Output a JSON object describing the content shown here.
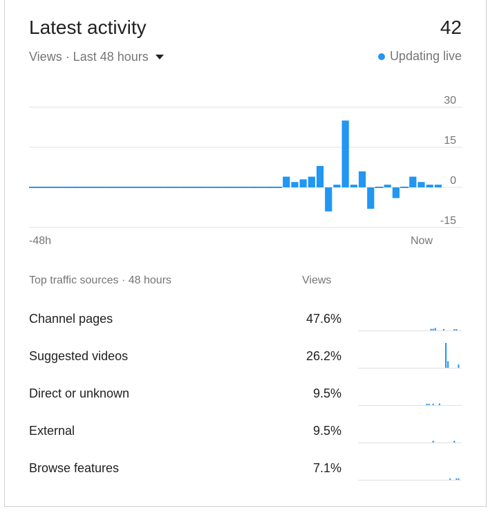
{
  "header": {
    "title": "Latest activity",
    "total": "42",
    "metric_label": "Views · Last 48 hours",
    "live_label": "Updating live"
  },
  "colors": {
    "bar": "#2196f3",
    "grid": "#e0e0e0",
    "text_secondary": "#757575"
  },
  "chart_data": {
    "type": "bar",
    "title": "",
    "xlabel": "",
    "ylabel": "",
    "ylim": [
      -15,
      30
    ],
    "yticks": [
      "30",
      "15",
      "0",
      "-15"
    ],
    "xtick_labels": [
      "-48h",
      "Now"
    ],
    "values": [
      0,
      0,
      0,
      0,
      0,
      0,
      0,
      0,
      0,
      0,
      0,
      0,
      0,
      0,
      0,
      0,
      0,
      0,
      0,
      0,
      0,
      0,
      0,
      0,
      0,
      0,
      0,
      0,
      0,
      0,
      4,
      2,
      3,
      4,
      8,
      -9,
      1,
      25,
      1,
      6,
      -8,
      0,
      1,
      -4,
      0,
      4,
      2,
      1,
      1
    ]
  },
  "traffic": {
    "header_label": "Top traffic sources · 48 hours",
    "views_label": "Views",
    "sources": [
      {
        "name": "Channel pages",
        "pct": "47.6%",
        "spark": [
          0,
          0,
          0,
          0,
          0,
          0,
          0,
          0,
          0,
          0,
          0,
          0,
          0,
          0,
          0,
          0,
          0,
          0,
          0,
          0,
          0,
          0,
          0,
          0,
          0,
          0,
          0,
          0,
          0,
          0,
          0,
          0,
          0,
          0,
          2,
          2,
          3,
          0,
          0,
          0,
          1,
          0,
          0,
          0,
          0,
          1,
          1,
          0,
          0
        ]
      },
      {
        "name": "Suggested videos",
        "pct": "26.2%",
        "spark": [
          0,
          0,
          0,
          0,
          0,
          0,
          0,
          0,
          0,
          0,
          0,
          0,
          0,
          0,
          0,
          0,
          0,
          0,
          0,
          0,
          0,
          0,
          0,
          0,
          0,
          0,
          0,
          0,
          0,
          0,
          0,
          0,
          0,
          0,
          0,
          0,
          0,
          0,
          0,
          0,
          0,
          30,
          8,
          0,
          0,
          0,
          0,
          4,
          0
        ]
      },
      {
        "name": "Direct or unknown",
        "pct": "9.5%",
        "spark": [
          0,
          0,
          0,
          0,
          0,
          0,
          0,
          0,
          0,
          0,
          0,
          0,
          0,
          0,
          0,
          0,
          0,
          0,
          0,
          0,
          0,
          0,
          0,
          0,
          0,
          0,
          0,
          0,
          0,
          0,
          0,
          0,
          1,
          1,
          0,
          1,
          0,
          0,
          2,
          0,
          0,
          0,
          0,
          0,
          0,
          0,
          0,
          0,
          0
        ]
      },
      {
        "name": "External",
        "pct": "9.5%",
        "spark": [
          0,
          0,
          0,
          0,
          0,
          0,
          0,
          0,
          0,
          0,
          0,
          0,
          0,
          0,
          0,
          0,
          0,
          0,
          0,
          0,
          0,
          0,
          0,
          0,
          0,
          0,
          0,
          0,
          0,
          0,
          0,
          0,
          0,
          0,
          0,
          2,
          0,
          0,
          0,
          0,
          0,
          0,
          0,
          0,
          0,
          2,
          0,
          0,
          0
        ]
      },
      {
        "name": "Browse features",
        "pct": "7.1%",
        "spark": [
          0,
          0,
          0,
          0,
          0,
          0,
          0,
          0,
          0,
          0,
          0,
          0,
          0,
          0,
          0,
          0,
          0,
          0,
          0,
          0,
          0,
          0,
          0,
          0,
          0,
          0,
          0,
          0,
          0,
          0,
          0,
          0,
          0,
          0,
          0,
          0,
          0,
          0,
          0,
          0,
          0,
          0,
          0,
          1,
          0,
          0,
          1,
          1,
          0
        ]
      }
    ]
  }
}
